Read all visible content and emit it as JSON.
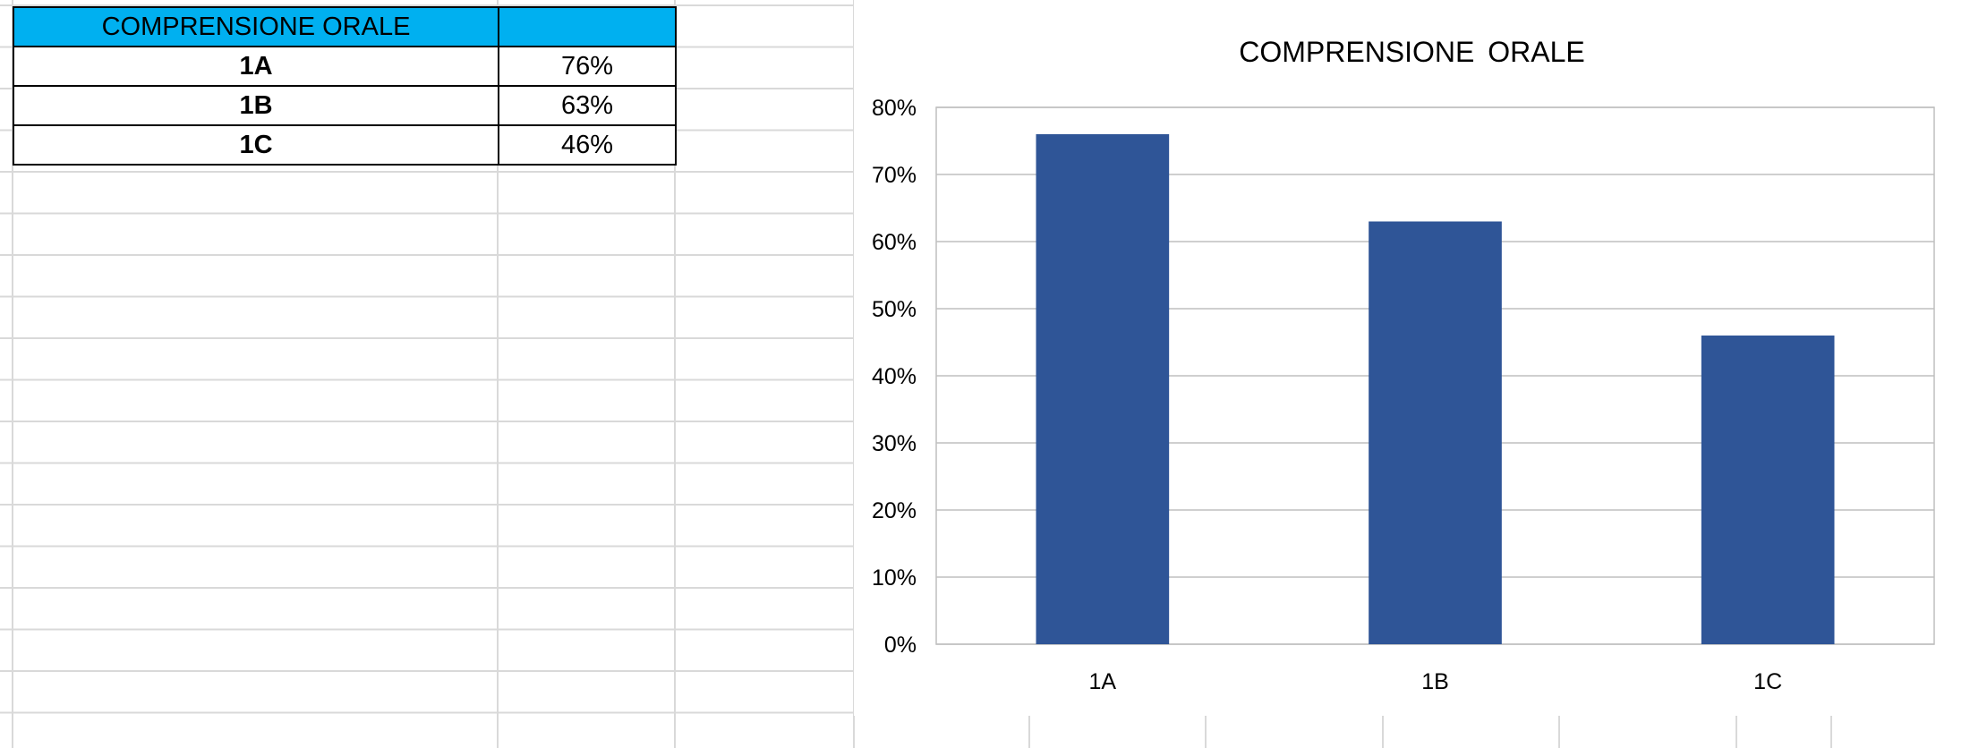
{
  "table": {
    "header": [
      "COMPRENSIONE ORALE",
      ""
    ],
    "rows": [
      {
        "label": "1A",
        "value": "76%"
      },
      {
        "label": "1B",
        "value": "63%"
      },
      {
        "label": "1C",
        "value": "46%"
      }
    ]
  },
  "chart_data": {
    "type": "bar",
    "title": "COMPRENSIONE  ORALE",
    "categories": [
      "1A",
      "1B",
      "1C"
    ],
    "values": [
      76,
      63,
      46
    ],
    "ylim": [
      0,
      80
    ],
    "yticks": [
      "0%",
      "10%",
      "20%",
      "30%",
      "40%",
      "50%",
      "60%",
      "70%",
      "80%"
    ],
    "grid": true,
    "bar_color": "#2f5597",
    "xlabel": "",
    "ylabel": ""
  },
  "colors": {
    "table_header_bg": "#00b0f0",
    "gridline": "#d9d9d9",
    "chart_grid": "#bfbfbf"
  }
}
